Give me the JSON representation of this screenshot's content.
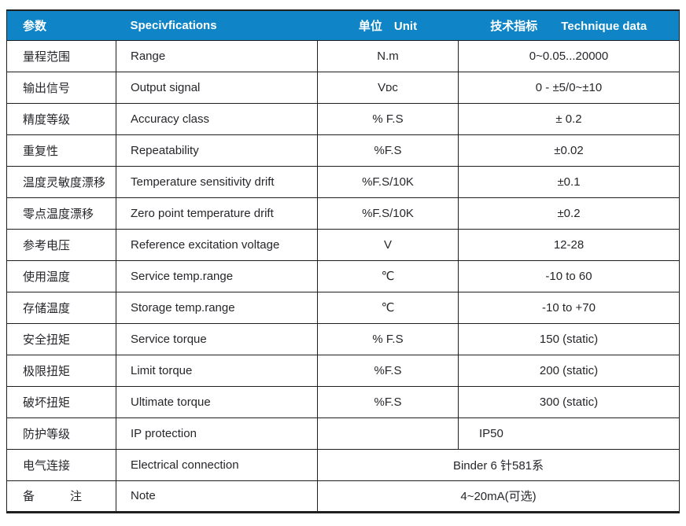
{
  "colors": {
    "header_bg": "#0f84c6",
    "header_text": "#ffffff",
    "border": "#1f1f1f",
    "text": "#26262b",
    "page_bg": "#ffffff"
  },
  "table": {
    "headers": {
      "param": "参数",
      "spec": "Specivfications",
      "unit": "单位　Unit",
      "technique": "技术指标　　Technique data"
    },
    "rows": [
      {
        "cn": "量程范围",
        "en": "Range",
        "unit": "N.m",
        "value": "0~0.05...20000"
      },
      {
        "cn": "输出信号",
        "en": "Output signal",
        "unit": "Vᴅᴄ",
        "value": "0 - ±5/0~±10"
      },
      {
        "cn": "精度等级",
        "en": "Accuracy class",
        "unit": "% F.S",
        "value": "± 0.2"
      },
      {
        "cn": "重复性",
        "en": "Repeatability",
        "unit": "%F.S",
        "value": "±0.02"
      },
      {
        "cn": "温度灵敏度漂移",
        "en": "Temperature sensitivity drift",
        "unit": "%F.S/10K",
        "value": "±0.1"
      },
      {
        "cn": "零点温度漂移",
        "en": "Zero point temperature drift",
        "unit": "%F.S/10K",
        "value": "±0.2"
      },
      {
        "cn": "参考电压",
        "en": "Reference excitation voltage",
        "unit": "V",
        "value": "12-28"
      },
      {
        "cn": "使用温度",
        "en": "Service temp.range",
        "unit": "℃",
        "value": "-10 to 60"
      },
      {
        "cn": "存储温度",
        "en": "Storage temp.range",
        "unit": "℃",
        "value": "-10 to +70"
      },
      {
        "cn": "安全扭矩",
        "en": "Service torque",
        "unit": "% F.S",
        "value": "150 (static)"
      },
      {
        "cn": "极限扭矩",
        "en": "Limit torque",
        "unit": "%F.S",
        "value": "200 (static)"
      },
      {
        "cn": "破坏扭矩",
        "en": "Ultimate torque",
        "unit": "%F.S",
        "value": "300 (static)"
      },
      {
        "cn": "防护等级",
        "en": "IP protection",
        "unit": "",
        "value": "IP50"
      },
      {
        "cn": "电气连接",
        "en": "Electrical connection",
        "value": "Binder 6 针581系"
      },
      {
        "cn": "备　　　注",
        "en": "Note",
        "value": "4~20mA(可选)"
      }
    ]
  }
}
